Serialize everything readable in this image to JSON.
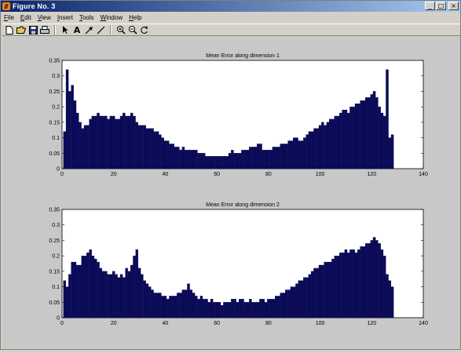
{
  "window": {
    "title": "Figure No. 3",
    "minimize_symbol": "_",
    "maximize_symbol": "□",
    "close_symbol": "×"
  },
  "menu": [
    "File",
    "Edit",
    "View",
    "Insert",
    "Tools",
    "Window",
    "Help"
  ],
  "toolbar": {
    "new_icon": "new-file-icon",
    "open_icon": "open-folder-icon",
    "save_icon": "save-disk-icon",
    "print_icon": "printer-icon",
    "select_icon": "arrow-pointer-icon",
    "text_tool": "A",
    "arrow_icon": "arrow-tool-icon",
    "line_icon": "line-tool-icon",
    "zoom_in_icon": "zoom-in-icon",
    "zoom_out_icon": "zoom-out-icon",
    "rotate_icon": "rotate-icon"
  },
  "chart_data": [
    {
      "type": "bar",
      "title": "Mean Error along dimension 1",
      "xlim": [
        0,
        140
      ],
      "ylim": [
        0,
        0.35
      ],
      "xticks": [
        0,
        20,
        40,
        60,
        80,
        100,
        120,
        140
      ],
      "yticks": [
        0,
        0.05,
        0.1,
        0.15,
        0.2,
        0.25,
        0.3,
        0.35
      ],
      "color": "#0a0a5a",
      "x": [
        1,
        2,
        3,
        4,
        5,
        6,
        7,
        8,
        9,
        10,
        11,
        12,
        13,
        14,
        15,
        16,
        17,
        18,
        19,
        20,
        21,
        22,
        23,
        24,
        25,
        26,
        27,
        28,
        29,
        30,
        31,
        32,
        33,
        34,
        35,
        36,
        37,
        38,
        39,
        40,
        41,
        42,
        43,
        44,
        45,
        46,
        47,
        48,
        49,
        50,
        51,
        52,
        53,
        54,
        55,
        56,
        57,
        58,
        59,
        60,
        61,
        62,
        63,
        64,
        65,
        66,
        67,
        68,
        69,
        70,
        71,
        72,
        73,
        74,
        75,
        76,
        77,
        78,
        79,
        80,
        81,
        82,
        83,
        84,
        85,
        86,
        87,
        88,
        89,
        90,
        91,
        92,
        93,
        94,
        95,
        96,
        97,
        98,
        99,
        100,
        101,
        102,
        103,
        104,
        105,
        106,
        107,
        108,
        109,
        110,
        111,
        112,
        113,
        114,
        115,
        116,
        117,
        118,
        119,
        120,
        121,
        122,
        123,
        124,
        125,
        126,
        127,
        128
      ],
      "values": [
        0.12,
        0.32,
        0.25,
        0.27,
        0.22,
        0.18,
        0.15,
        0.13,
        0.14,
        0.14,
        0.16,
        0.17,
        0.17,
        0.18,
        0.17,
        0.17,
        0.17,
        0.16,
        0.17,
        0.17,
        0.16,
        0.16,
        0.17,
        0.18,
        0.17,
        0.17,
        0.18,
        0.17,
        0.15,
        0.14,
        0.14,
        0.14,
        0.13,
        0.13,
        0.13,
        0.12,
        0.12,
        0.11,
        0.1,
        0.09,
        0.09,
        0.08,
        0.08,
        0.07,
        0.07,
        0.06,
        0.07,
        0.06,
        0.06,
        0.06,
        0.06,
        0.06,
        0.05,
        0.05,
        0.05,
        0.04,
        0.04,
        0.04,
        0.04,
        0.04,
        0.04,
        0.04,
        0.04,
        0.04,
        0.05,
        0.06,
        0.05,
        0.05,
        0.05,
        0.06,
        0.06,
        0.06,
        0.07,
        0.07,
        0.07,
        0.08,
        0.08,
        0.06,
        0.06,
        0.06,
        0.06,
        0.07,
        0.07,
        0.07,
        0.08,
        0.08,
        0.08,
        0.09,
        0.09,
        0.1,
        0.1,
        0.09,
        0.09,
        0.1,
        0.11,
        0.12,
        0.12,
        0.13,
        0.13,
        0.14,
        0.15,
        0.14,
        0.15,
        0.16,
        0.16,
        0.17,
        0.17,
        0.18,
        0.19,
        0.19,
        0.18,
        0.2,
        0.2,
        0.21,
        0.21,
        0.22,
        0.22,
        0.23,
        0.23,
        0.24,
        0.25,
        0.23,
        0.2,
        0.18,
        0.17,
        0.32,
        0.1,
        0.11
      ]
    },
    {
      "type": "bar",
      "title": "Mean Error along dimension 2",
      "xlim": [
        0,
        140
      ],
      "ylim": [
        0,
        0.35
      ],
      "xticks": [
        0,
        20,
        40,
        60,
        80,
        100,
        120,
        140
      ],
      "yticks": [
        0,
        0.05,
        0.1,
        0.15,
        0.2,
        0.25,
        0.3,
        0.35
      ],
      "color": "#0a0a5a",
      "x": [
        1,
        2,
        3,
        4,
        5,
        6,
        7,
        8,
        9,
        10,
        11,
        12,
        13,
        14,
        15,
        16,
        17,
        18,
        19,
        20,
        21,
        22,
        23,
        24,
        25,
        26,
        27,
        28,
        29,
        30,
        31,
        32,
        33,
        34,
        35,
        36,
        37,
        38,
        39,
        40,
        41,
        42,
        43,
        44,
        45,
        46,
        47,
        48,
        49,
        50,
        51,
        52,
        53,
        54,
        55,
        56,
        57,
        58,
        59,
        60,
        61,
        62,
        63,
        64,
        65,
        66,
        67,
        68,
        69,
        70,
        71,
        72,
        73,
        74,
        75,
        76,
        77,
        78,
        79,
        80,
        81,
        82,
        83,
        84,
        85,
        86,
        87,
        88,
        89,
        90,
        91,
        92,
        93,
        94,
        95,
        96,
        97,
        98,
        99,
        100,
        101,
        102,
        103,
        104,
        105,
        106,
        107,
        108,
        109,
        110,
        111,
        112,
        113,
        114,
        115,
        116,
        117,
        118,
        119,
        120,
        121,
        122,
        123,
        124,
        125,
        126,
        127,
        128
      ],
      "values": [
        0.12,
        0.1,
        0.14,
        0.18,
        0.18,
        0.17,
        0.17,
        0.2,
        0.2,
        0.21,
        0.22,
        0.2,
        0.19,
        0.18,
        0.16,
        0.15,
        0.15,
        0.14,
        0.14,
        0.15,
        0.14,
        0.13,
        0.14,
        0.13,
        0.16,
        0.15,
        0.17,
        0.2,
        0.22,
        0.16,
        0.14,
        0.12,
        0.11,
        0.1,
        0.09,
        0.08,
        0.08,
        0.08,
        0.07,
        0.07,
        0.06,
        0.07,
        0.07,
        0.07,
        0.08,
        0.08,
        0.09,
        0.09,
        0.11,
        0.09,
        0.08,
        0.07,
        0.06,
        0.07,
        0.06,
        0.06,
        0.05,
        0.06,
        0.05,
        0.05,
        0.05,
        0.04,
        0.05,
        0.05,
        0.05,
        0.06,
        0.06,
        0.05,
        0.06,
        0.06,
        0.05,
        0.05,
        0.06,
        0.05,
        0.05,
        0.05,
        0.06,
        0.06,
        0.05,
        0.06,
        0.06,
        0.06,
        0.07,
        0.07,
        0.08,
        0.08,
        0.09,
        0.09,
        0.1,
        0.1,
        0.11,
        0.12,
        0.12,
        0.13,
        0.13,
        0.14,
        0.15,
        0.16,
        0.16,
        0.17,
        0.17,
        0.18,
        0.18,
        0.18,
        0.19,
        0.2,
        0.2,
        0.21,
        0.21,
        0.22,
        0.21,
        0.22,
        0.22,
        0.21,
        0.22,
        0.23,
        0.23,
        0.24,
        0.24,
        0.25,
        0.26,
        0.25,
        0.24,
        0.22,
        0.2,
        0.14,
        0.12,
        0.1
      ]
    }
  ]
}
